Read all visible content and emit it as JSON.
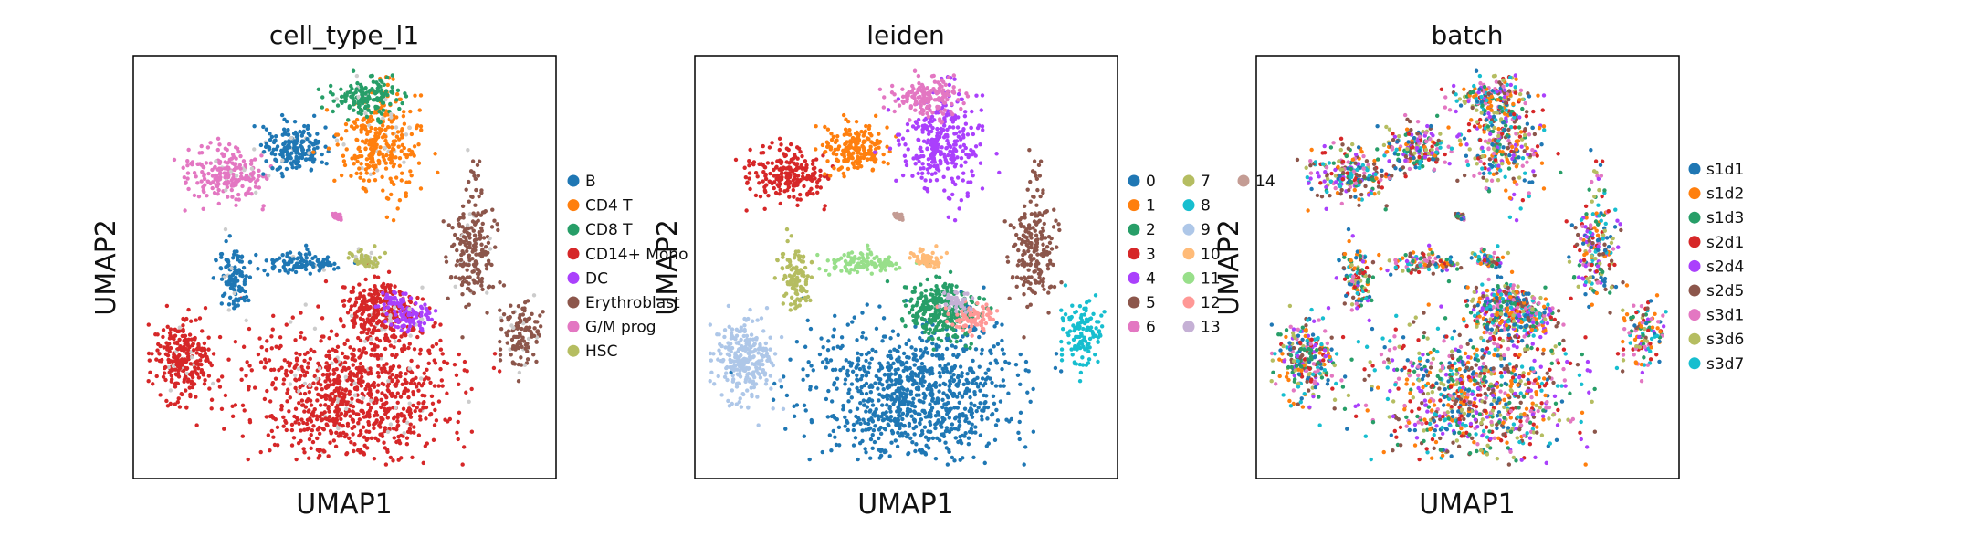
{
  "chart_data": [
    {
      "type": "scatter",
      "title": "cell_type_l1",
      "xlabel": "UMAP1",
      "ylabel": "UMAP2",
      "grid": false,
      "ticks": false,
      "legend_placement": "right",
      "categories": [
        "B",
        "CD4 T",
        "CD8 T",
        "CD14+ Mono",
        "DC",
        "Erythroblast",
        "G/M prog",
        "HSC"
      ],
      "colors": [
        "#1f77b4",
        "#ff7f0e",
        "#279e68",
        "#d62728",
        "#aa40fc",
        "#8c564b",
        "#e377c2",
        "#b5bd61"
      ],
      "missing_color": "#cccccc"
    },
    {
      "type": "scatter",
      "title": "leiden",
      "xlabel": "UMAP1",
      "ylabel": "UMAP2",
      "grid": false,
      "ticks": false,
      "legend_placement": "right",
      "categories": [
        "0",
        "1",
        "2",
        "3",
        "4",
        "5",
        "6",
        "7",
        "8",
        "9",
        "10",
        "11",
        "12",
        "13",
        "14"
      ],
      "colors": [
        "#1f77b4",
        "#ff7f0e",
        "#279e68",
        "#d62728",
        "#aa40fc",
        "#8c564b",
        "#e377c2",
        "#b5bd61",
        "#17becf",
        "#aec7e8",
        "#ffbb78",
        "#98df8a",
        "#ff9896",
        "#c5b0d5",
        "#c49c94"
      ]
    },
    {
      "type": "scatter",
      "title": "batch",
      "xlabel": "UMAP1",
      "ylabel": "UMAP2",
      "grid": false,
      "ticks": false,
      "legend_placement": "right",
      "categories": [
        "s1d1",
        "s1d2",
        "s1d3",
        "s2d1",
        "s2d4",
        "s2d5",
        "s3d1",
        "s3d6",
        "s3d7"
      ],
      "colors": [
        "#1f77b4",
        "#ff7f0e",
        "#279e68",
        "#d62728",
        "#aa40fc",
        "#8c564b",
        "#e377c2",
        "#b5bd61",
        "#17becf"
      ]
    }
  ]
}
